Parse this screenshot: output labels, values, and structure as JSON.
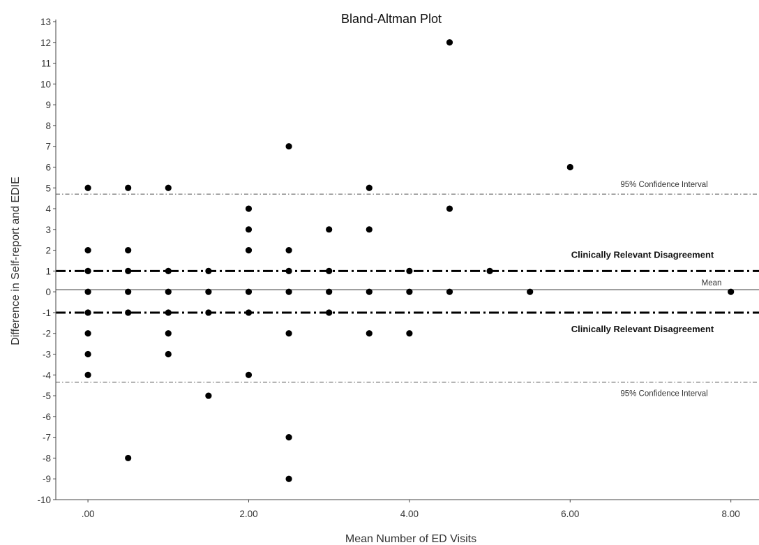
{
  "chart_data": {
    "type": "scatter",
    "title": "Bland-Altman Plot",
    "xlabel": "Mean Number of ED Visits",
    "ylabel": "Difference in Self-report and EDIE",
    "xlim": [
      -0.4,
      8.35
    ],
    "ylim": [
      -10,
      13
    ],
    "x_ticks": [
      0,
      2,
      4,
      6,
      8
    ],
    "x_tick_labels": [
      ".00",
      "2.00",
      "4.00",
      "6.00",
      "8.00"
    ],
    "y_ticks": [
      -10,
      -9,
      -8,
      -7,
      -6,
      -5,
      -4,
      -3,
      -2,
      -1,
      0,
      1,
      2,
      3,
      4,
      5,
      6,
      7,
      8,
      9,
      10,
      11,
      12,
      13
    ],
    "y_tick_labels": [
      "-10",
      "-9",
      "-8",
      "-7",
      "-6",
      "-5",
      "-4",
      "-3",
      "-2",
      "-1",
      "0",
      "1",
      "2",
      "3",
      "4",
      "5",
      "6",
      "7",
      "8",
      "9",
      "10",
      "11",
      "12",
      "13"
    ],
    "grid": false,
    "legend": "none",
    "marker_color": "#000000",
    "points": [
      {
        "x": 0,
        "y": 5
      },
      {
        "x": 0,
        "y": 2
      },
      {
        "x": 0,
        "y": 1
      },
      {
        "x": 0,
        "y": 0
      },
      {
        "x": 0,
        "y": -1
      },
      {
        "x": 0,
        "y": -2
      },
      {
        "x": 0,
        "y": -3
      },
      {
        "x": 0,
        "y": -4
      },
      {
        "x": 0.5,
        "y": 5
      },
      {
        "x": 0.5,
        "y": 2
      },
      {
        "x": 0.5,
        "y": 1
      },
      {
        "x": 0.5,
        "y": 0
      },
      {
        "x": 0.5,
        "y": -1
      },
      {
        "x": 0.5,
        "y": -8
      },
      {
        "x": 1,
        "y": 5
      },
      {
        "x": 1,
        "y": 1
      },
      {
        "x": 1,
        "y": 0
      },
      {
        "x": 1,
        "y": -1
      },
      {
        "x": 1,
        "y": -2
      },
      {
        "x": 1,
        "y": -3
      },
      {
        "x": 1.5,
        "y": 1
      },
      {
        "x": 1.5,
        "y": 0
      },
      {
        "x": 1.5,
        "y": -1
      },
      {
        "x": 1.5,
        "y": -5
      },
      {
        "x": 2,
        "y": 4
      },
      {
        "x": 2,
        "y": 3
      },
      {
        "x": 2,
        "y": 2
      },
      {
        "x": 2,
        "y": 0
      },
      {
        "x": 2,
        "y": -1
      },
      {
        "x": 2,
        "y": -4
      },
      {
        "x": 2.5,
        "y": 7
      },
      {
        "x": 2.5,
        "y": 2
      },
      {
        "x": 2.5,
        "y": 1
      },
      {
        "x": 2.5,
        "y": 0
      },
      {
        "x": 2.5,
        "y": -2
      },
      {
        "x": 2.5,
        "y": -7
      },
      {
        "x": 2.5,
        "y": -9
      },
      {
        "x": 3,
        "y": 3
      },
      {
        "x": 3,
        "y": 1
      },
      {
        "x": 3,
        "y": 0
      },
      {
        "x": 3,
        "y": -1
      },
      {
        "x": 3.5,
        "y": 5
      },
      {
        "x": 3.5,
        "y": 3
      },
      {
        "x": 3.5,
        "y": 0
      },
      {
        "x": 3.5,
        "y": -2
      },
      {
        "x": 4,
        "y": 1
      },
      {
        "x": 4,
        "y": 0
      },
      {
        "x": 4,
        "y": -2
      },
      {
        "x": 4.5,
        "y": 12
      },
      {
        "x": 4.5,
        "y": 4
      },
      {
        "x": 4.5,
        "y": 0
      },
      {
        "x": 5,
        "y": 1
      },
      {
        "x": 5.5,
        "y": 0
      },
      {
        "x": 6,
        "y": 6
      },
      {
        "x": 8,
        "y": 0
      }
    ],
    "reference_lines": [
      {
        "y": 4.7,
        "style": "dash-dot-thin",
        "label": "95% Confidence Interval",
        "label_weight": "normal"
      },
      {
        "y": 1,
        "style": "dash-dot-thick",
        "label": "Clinically Relevant Disagreement",
        "label_weight": "bold"
      },
      {
        "y": 0.1,
        "style": "solid",
        "label": "Mean",
        "label_weight": "normal"
      },
      {
        "y": -1,
        "style": "dash-dot-thick",
        "label": "Clinically Relevant Disagreement",
        "label_weight": "bold"
      },
      {
        "y": -4.35,
        "style": "dash-dot-thin",
        "label": "95% Confidence Interval",
        "label_weight": "normal"
      }
    ]
  }
}
